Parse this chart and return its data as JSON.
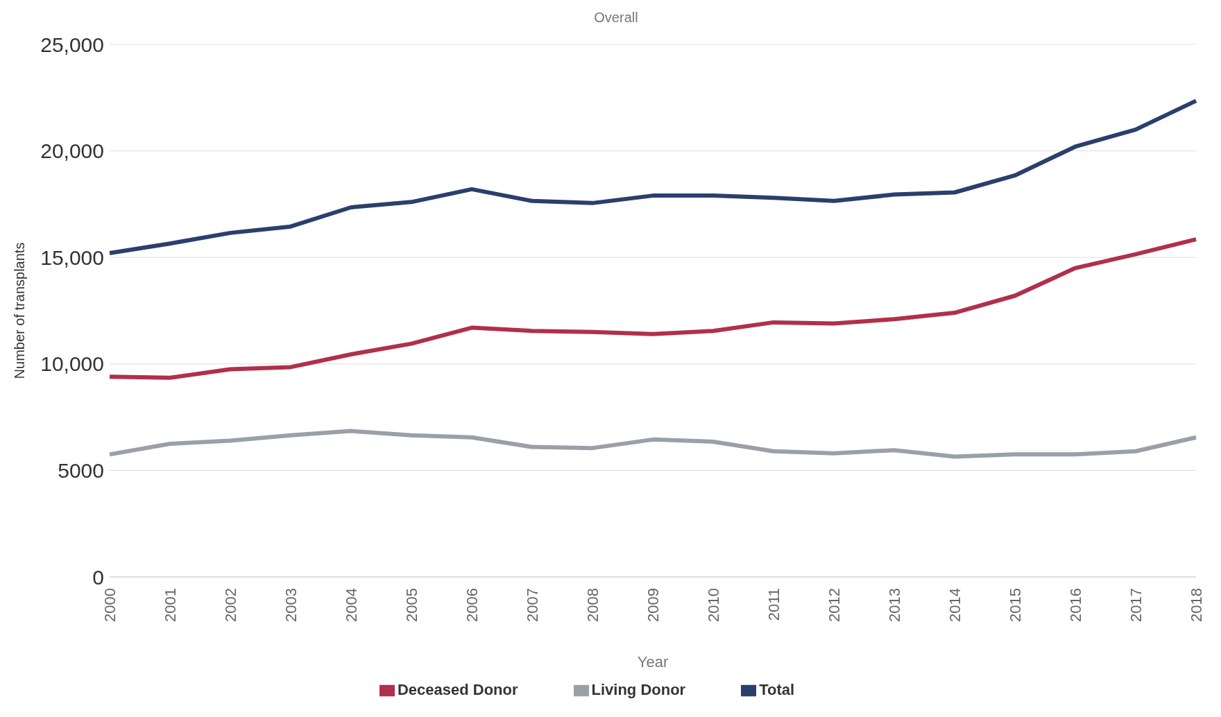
{
  "chart_data": {
    "type": "line",
    "title": "Overall",
    "xlabel": "Year",
    "ylabel": "Number of transplants",
    "categories": [
      "2000",
      "2001",
      "2002",
      "2003",
      "2004",
      "2005",
      "2006",
      "2007",
      "2008",
      "2009",
      "2010",
      "2011",
      "2012",
      "2013",
      "2014",
      "2015",
      "2016",
      "2017",
      "2018"
    ],
    "series": [
      {
        "name": "Total",
        "color": "#2b3f6c",
        "values": [
          15200,
          15650,
          16150,
          16450,
          17350,
          17600,
          18200,
          17650,
          17550,
          17900,
          17900,
          17800,
          17650,
          17950,
          18050,
          18850,
          20200,
          21000,
          22350
        ]
      },
      {
        "name": "Deceased Donor",
        "color": "#b0304b",
        "values": [
          9400,
          9350,
          9750,
          9850,
          10450,
          10950,
          11700,
          11550,
          11500,
          11400,
          11550,
          11950,
          11900,
          12100,
          12400,
          13200,
          14500,
          15150,
          15850
        ]
      },
      {
        "name": "Living Donor",
        "color": "#9aa0a7",
        "values": [
          5750,
          6250,
          6400,
          6650,
          6850,
          6650,
          6550,
          6100,
          6050,
          6450,
          6350,
          5900,
          5800,
          5950,
          5650,
          5750,
          5750,
          5900,
          6550
        ]
      }
    ],
    "ylim": [
      0,
      25000
    ],
    "yticks": [
      0,
      {
        "value": 5000,
        "label": "5000"
      },
      {
        "value": 10000,
        "label": "10,000"
      },
      {
        "value": 15000,
        "label": "15,000"
      },
      {
        "value": 20000,
        "label": "20,000"
      },
      {
        "value": 25000,
        "label": "25,000"
      }
    ],
    "grid": "y",
    "legend": "bottom",
    "marker": "none",
    "line_style": "solid"
  }
}
